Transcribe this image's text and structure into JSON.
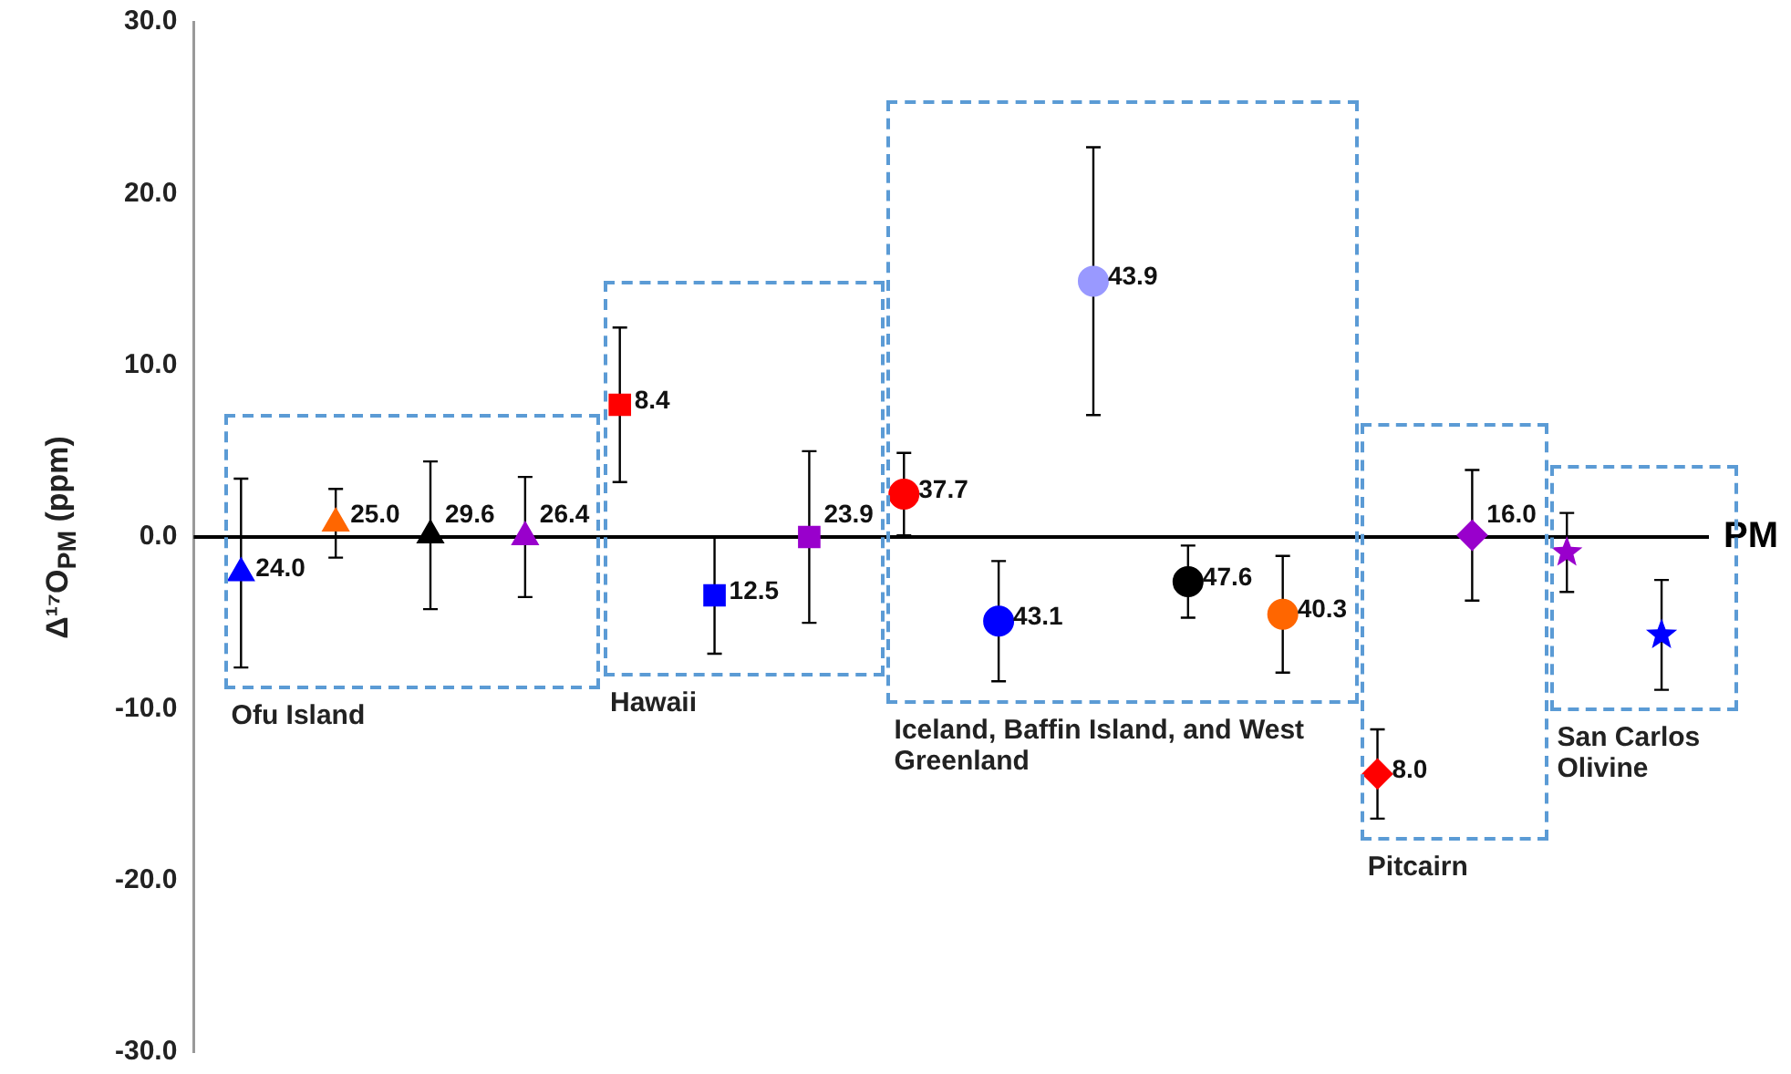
{
  "chart_data": {
    "type": "scatter",
    "ylabel": "Δ¹⁷O$_{PM}$ (ppm)",
    "categories": [
      null,
      null,
      null,
      null,
      null,
      null,
      null,
      null,
      null,
      null,
      null,
      null,
      null,
      null,
      null,
      null
    ],
    "ylim": [
      -30,
      30
    ],
    "yticks": [
      {
        "value": -30,
        "label": "-30.0"
      },
      {
        "value": -20,
        "label": "-20.0"
      },
      {
        "value": -10,
        "label": "-10.0"
      },
      {
        "value": 0,
        "label": "0.0"
      },
      {
        "value": 10,
        "label": "10.0"
      },
      {
        "value": 20,
        "label": "20.0"
      },
      {
        "value": 30,
        "label": "30.0"
      }
    ],
    "tick_labels": "y",
    "grid": false,
    "legend": false,
    "ref_lines": [
      {
        "axis": "y",
        "value": 0,
        "label": "PM",
        "color": "#000000"
      }
    ],
    "annotations": [
      "Ofu Island",
      "Hawaii",
      "Iceland, Baffin Island, and West Greenland",
      "Pitcairn",
      "San Carlos Olivine",
      "24.0",
      "25.0",
      "29.6",
      "26.4",
      "8.4",
      "12.5",
      "23.9",
      "37.7",
      "43.1",
      "43.9",
      "47.6",
      "40.3",
      "8.0",
      "16.0"
    ],
    "series": [
      {
        "marker": "triangle",
        "values": [
          -2.1,
          0.8,
          0.1,
          0,
          null,
          null,
          null,
          null,
          null,
          null,
          null,
          null,
          null,
          null,
          null,
          null
        ],
        "errors": [
          5.5,
          2,
          4.3,
          3.5,
          null,
          null,
          null,
          null,
          null,
          null,
          null,
          null,
          null,
          null,
          null,
          null
        ],
        "colors": [
          "#0000ff",
          "#ff6600",
          "#000000",
          "#9900cc",
          null,
          null,
          null,
          null,
          null,
          null,
          null,
          null,
          null,
          null,
          null,
          null
        ]
      },
      {
        "marker": "square",
        "values": [
          null,
          null,
          null,
          null,
          7.7,
          -3.4,
          0,
          null,
          null,
          null,
          null,
          null,
          null,
          null,
          null,
          null
        ],
        "errors": [
          null,
          null,
          null,
          null,
          4.5,
          3.4,
          5,
          null,
          null,
          null,
          null,
          null,
          null,
          null,
          null,
          null
        ],
        "colors": [
          null,
          null,
          null,
          null,
          "#ff0000",
          "#0000ff",
          "#9900cc",
          null,
          null,
          null,
          null,
          null,
          null,
          null,
          null,
          null
        ]
      },
      {
        "marker": "circle",
        "values": [
          null,
          null,
          null,
          null,
          null,
          null,
          null,
          2.5,
          -4.9,
          14.9,
          -2.6,
          -4.5,
          null,
          null,
          null,
          null
        ],
        "errors": [
          null,
          null,
          null,
          null,
          null,
          null,
          null,
          2.4,
          3.5,
          7.8,
          2.1,
          3.4,
          null,
          null,
          null,
          null
        ],
        "colors": [
          null,
          null,
          null,
          null,
          null,
          null,
          null,
          "#ff0000",
          "#0000ff",
          "#9999ff",
          "#000000",
          "#ff6600",
          null,
          null,
          null,
          null
        ]
      },
      {
        "marker": "diamond",
        "values": [
          null,
          null,
          null,
          null,
          null,
          null,
          null,
          null,
          null,
          null,
          null,
          null,
          -13.8,
          0.1,
          null,
          null
        ],
        "errors": [
          null,
          null,
          null,
          null,
          null,
          null,
          null,
          null,
          null,
          null,
          null,
          null,
          2.6,
          3.8,
          null,
          null
        ],
        "colors": [
          null,
          null,
          null,
          null,
          null,
          null,
          null,
          null,
          null,
          null,
          null,
          null,
          "#ff0000",
          "#9900cc",
          null,
          null
        ]
      },
      {
        "marker": "star",
        "values": [
          null,
          null,
          null,
          null,
          null,
          null,
          null,
          null,
          null,
          null,
          null,
          null,
          null,
          null,
          -0.9,
          -5.7
        ],
        "errors": [
          null,
          null,
          null,
          null,
          null,
          null,
          null,
          null,
          null,
          null,
          null,
          null,
          null,
          null,
          2.3,
          3.2
        ],
        "colors": [
          null,
          null,
          null,
          null,
          null,
          null,
          null,
          null,
          null,
          null,
          null,
          null,
          null,
          null,
          "#9900cc",
          "#0000ff"
        ]
      }
    ]
  }
}
